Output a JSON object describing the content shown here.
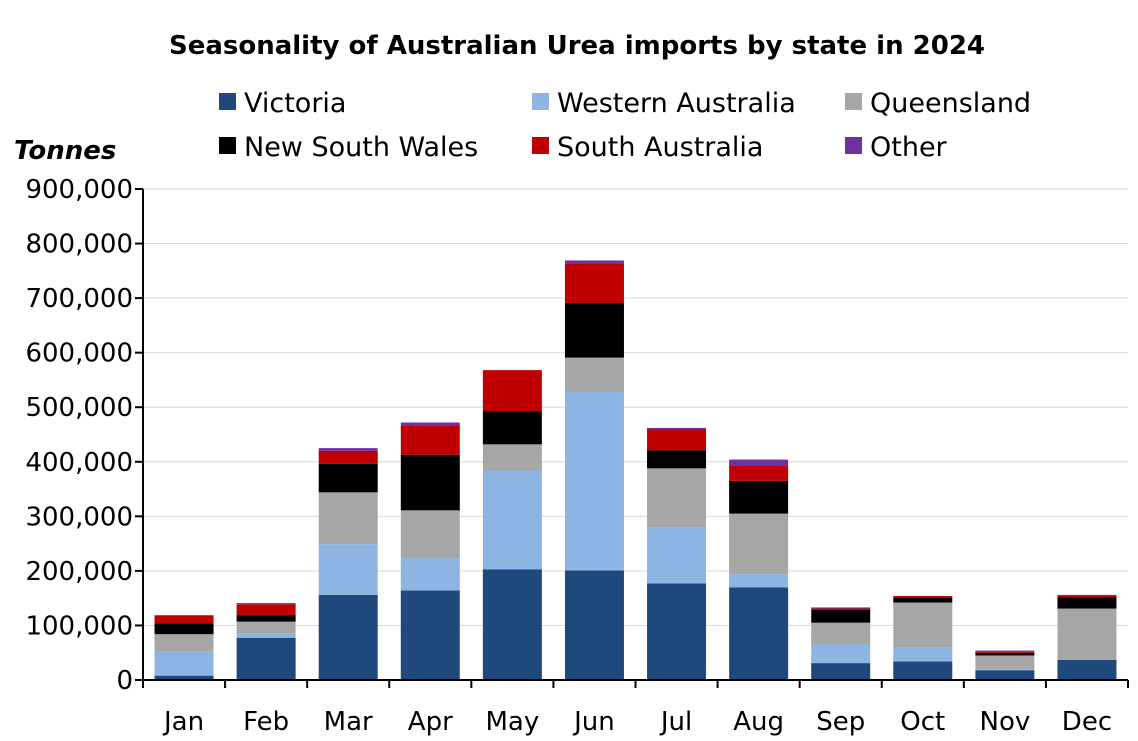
{
  "chart_data": {
    "type": "bar",
    "stacked": true,
    "title": "Seasonality of Australian Urea imports by state in 2024",
    "ylabel": "Tonnes",
    "xlabel": "",
    "ylim": [
      0,
      900000
    ],
    "yticks": [
      0,
      100000,
      200000,
      300000,
      400000,
      500000,
      600000,
      700000,
      800000,
      900000
    ],
    "ytick_labels": [
      "0",
      "100,000",
      "200,000",
      "300,000",
      "400,000",
      "500,000",
      "600,000",
      "700,000",
      "800,000",
      "900,000"
    ],
    "grid": true,
    "legend_position": "top",
    "categories": [
      "Jan",
      "Feb",
      "Mar",
      "Apr",
      "May",
      "Jun",
      "Jul",
      "Aug",
      "Sep",
      "Oct",
      "Nov",
      "Dec"
    ],
    "series": [
      {
        "name": "Victoria",
        "color": "#1f497d",
        "values": [
          8000,
          77000,
          156000,
          164000,
          203000,
          201000,
          177000,
          170000,
          31000,
          34000,
          18000,
          37000
        ]
      },
      {
        "name": "Western Australia",
        "color": "#8eb4e3",
        "values": [
          44000,
          8000,
          93000,
          59000,
          181000,
          327000,
          102000,
          24000,
          34000,
          25000,
          2000,
          0
        ]
      },
      {
        "name": "Queensland",
        "color": "#a6a6a6",
        "values": [
          32000,
          22000,
          95000,
          88000,
          48000,
          63000,
          109000,
          111000,
          40000,
          83000,
          25000,
          94000
        ]
      },
      {
        "name": "New South Wales",
        "color": "#000000",
        "values": [
          20000,
          12000,
          52000,
          102000,
          61000,
          100000,
          33000,
          60000,
          24000,
          9000,
          5000,
          21000
        ]
      },
      {
        "name": "South Australia",
        "color": "#c00000",
        "values": [
          14000,
          20000,
          24000,
          54000,
          75000,
          73000,
          39000,
          28000,
          2000,
          3000,
          2000,
          3000
        ]
      },
      {
        "name": "Other",
        "color": "#7030a0",
        "values": [
          1000,
          2000,
          5000,
          5000,
          0,
          5000,
          2000,
          11000,
          2000,
          0,
          2000,
          1000
        ]
      }
    ]
  }
}
